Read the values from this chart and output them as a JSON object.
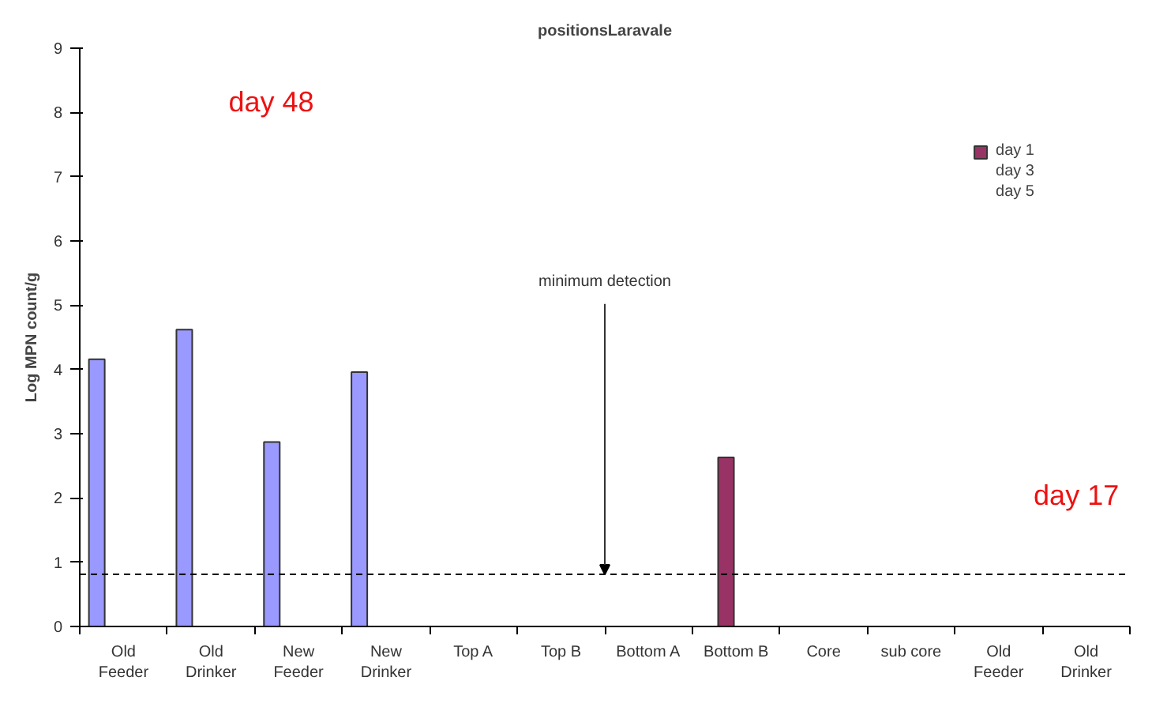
{
  "chart_data": {
    "type": "bar",
    "title": "positionsLaravale",
    "ylabel": "Log MPN count/g",
    "categories": [
      "Old Feeder",
      "Old Drinker",
      "New Feeder",
      "New Drinker",
      "Top A",
      "Top B",
      "Bottom A",
      "Bottom B",
      "Core",
      "sub core",
      "Old Feeder",
      "Old Drinker"
    ],
    "series": [
      {
        "color": "#9999ff",
        "values": [
          4.16,
          4.62,
          2.87,
          3.96,
          null,
          null,
          null,
          null,
          null,
          null,
          null,
          null
        ]
      },
      {
        "name": "day 1",
        "color": "#993366",
        "values": [
          null,
          null,
          null,
          null,
          null,
          null,
          null,
          2.63,
          null,
          null,
          null,
          null
        ]
      },
      {
        "name": "day 3",
        "values": [
          null,
          null,
          null,
          null,
          null,
          null,
          null,
          null,
          null,
          null,
          null,
          null
        ]
      },
      {
        "name": "day 5",
        "values": [
          null,
          null,
          null,
          null,
          null,
          null,
          null,
          null,
          null,
          null,
          null,
          null
        ]
      }
    ],
    "ylim": [
      0,
      9
    ],
    "yticks": [
      0,
      1,
      2,
      3,
      4,
      5,
      6,
      7,
      8,
      9
    ],
    "ref_lines": [
      {
        "axis": "y",
        "value": 0.81,
        "label": "minimum detection",
        "line_style": "dashed",
        "color": "#000000"
      }
    ],
    "annotations": [
      "day 48",
      "day 17"
    ],
    "legend": "top right",
    "grid": false
  }
}
